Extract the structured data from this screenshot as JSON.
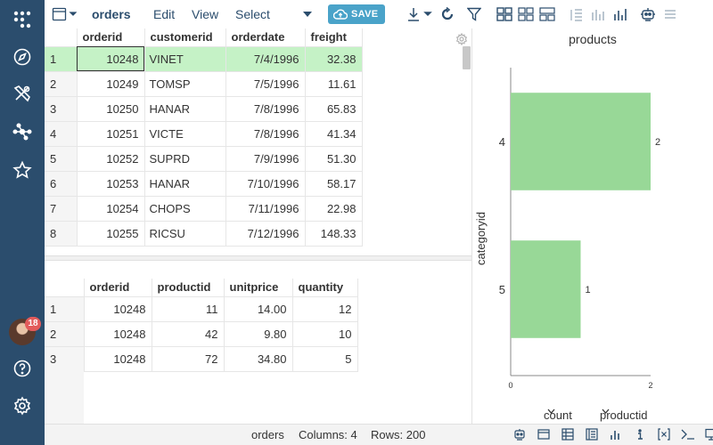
{
  "sidebar": {
    "items": [
      {
        "icon": "app-grid-icon"
      },
      {
        "icon": "compass-icon"
      },
      {
        "icon": "tools-icon"
      },
      {
        "icon": "network-icon"
      },
      {
        "icon": "star-icon"
      }
    ],
    "avatar_badge": "18",
    "bottom": [
      {
        "icon": "help-icon"
      },
      {
        "icon": "settings-icon"
      }
    ],
    "color": "#2b4d6d"
  },
  "toolbar": {
    "title": "orders",
    "menus": [
      "Edit",
      "View",
      "Select"
    ],
    "save_label": "SAVE",
    "accent": "#4aa3c9"
  },
  "orders": {
    "columns": [
      "orderid",
      "customerid",
      "orderdate",
      "freight"
    ],
    "rows": [
      [
        "1",
        "10248",
        "VINET",
        "7/4/1996",
        "32.38"
      ],
      [
        "2",
        "10249",
        "TOMSP",
        "7/5/1996",
        "11.61"
      ],
      [
        "3",
        "10250",
        "HANAR",
        "7/8/1996",
        "65.83"
      ],
      [
        "4",
        "10251",
        "VICTE",
        "7/8/1996",
        "41.34"
      ],
      [
        "5",
        "10252",
        "SUPRD",
        "7/9/1996",
        "51.30"
      ],
      [
        "6",
        "10253",
        "HANAR",
        "7/10/1996",
        "58.17"
      ],
      [
        "7",
        "10254",
        "CHOPS",
        "7/11/1996",
        "22.98"
      ],
      [
        "8",
        "10255",
        "RICSU",
        "7/12/1996",
        "148.33"
      ]
    ],
    "selected_row": 1,
    "selected_color": "#c5f2c6"
  },
  "details": {
    "columns": [
      "orderid",
      "productid",
      "unitprice",
      "quantity"
    ],
    "rows": [
      [
        "1",
        "10248",
        "11",
        "14.00",
        "12"
      ],
      [
        "2",
        "10248",
        "42",
        "9.80",
        "10"
      ],
      [
        "3",
        "10248",
        "72",
        "34.80",
        "5"
      ]
    ]
  },
  "chart_data": {
    "type": "bar",
    "orientation": "horizontal",
    "title": "products",
    "ylabel": "categoryid",
    "categories": [
      "4",
      "5"
    ],
    "values": [
      2,
      1
    ],
    "xlim": [
      0,
      2
    ],
    "xticks": [
      "0",
      "2"
    ],
    "bar_color": "#98d897",
    "grid": false
  },
  "chart_controls": {
    "value_select": "count",
    "category_select": "productid"
  },
  "statusbar": {
    "table": "orders",
    "columns": "Columns: 4",
    "rows": "Rows: 200"
  }
}
